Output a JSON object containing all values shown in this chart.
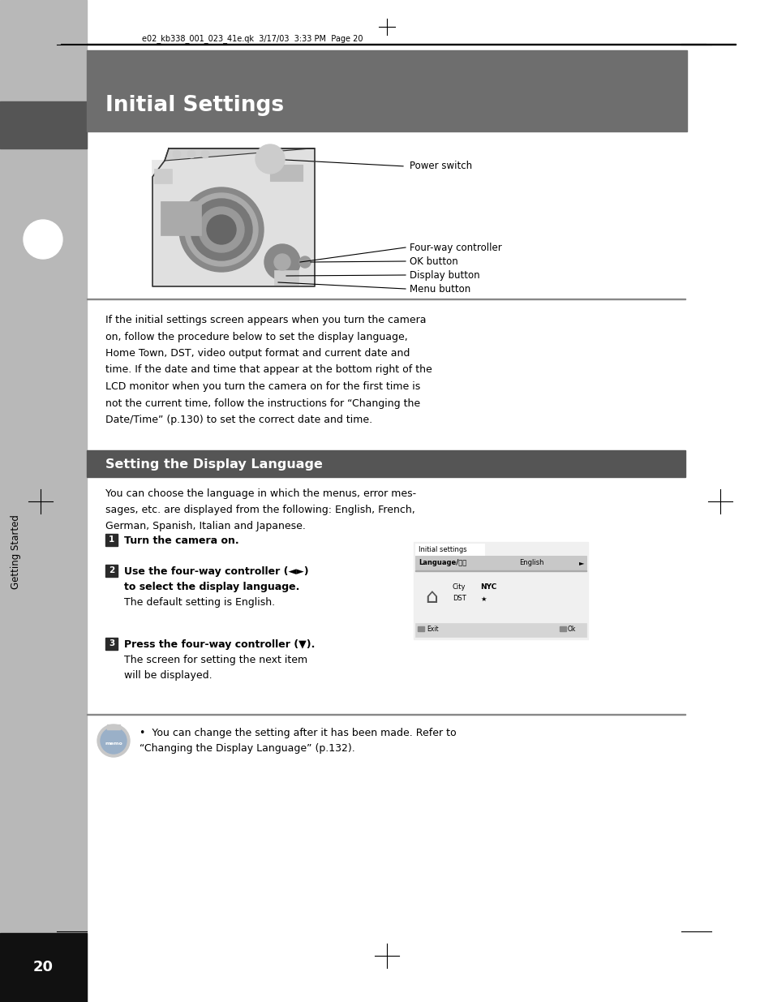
{
  "page_bg": "#ffffff",
  "sidebar_bg": "#b8b8b8",
  "header_bg": "#6e6e6e",
  "subheader_bg": "#555555",
  "header_text": "Initial Settings",
  "header_text_color": "#ffffff",
  "subheader_text": "Setting the Display Language",
  "subheader_text_color": "#ffffff",
  "top_meta": "e02_kb338_001_023_41e.qk  3/17/03  3:33 PM  Page 20",
  "sidebar_label": "Getting Started",
  "page_number": "20",
  "body_text_1": "If the initial settings screen appears when you turn the camera\non, follow the procedure below to set the display language,\nHome Town, DST, video output format and current date and\ntime. If the date and time that appear at the bottom right of the\nLCD monitor when you turn the camera on for the first time is\nnot the current time, follow the instructions for “Changing the\nDate/Time” (p.130) to set the correct date and time.",
  "section_intro": "You can choose the language in which the menus, error mes-\nsages, etc. are displayed from the following: English, French,\nGerman, Spanish, Italian and Japanese.",
  "steps": [
    {
      "num": "1",
      "bold": "Turn the camera on.",
      "normal": ""
    },
    {
      "num": "2",
      "bold": "Use the four-way controller (◄►)\nto select the display language.",
      "normal": "The default setting is English."
    },
    {
      "num": "3",
      "bold": "Press the four-way controller (▼).",
      "normal": "The screen for setting the next item\nwill be displayed."
    }
  ],
  "memo_text_1": "•  You can change the setting after it has been made. Refer to",
  "memo_text_2": "“Changing the Display Language” (p.132).",
  "camera_labels": [
    "Power switch",
    "Four-way controller",
    "OK button",
    "Display button",
    "Menu button"
  ],
  "screen_title": "Initial settings",
  "screen_lang_label": "Language/言語",
  "screen_lang_value": "English",
  "screen_city": "City",
  "screen_city_value": "NYC",
  "screen_dst": "DST",
  "screen_dst_value": "★",
  "screen_exit": "Exit",
  "screen_ok": "Ok"
}
